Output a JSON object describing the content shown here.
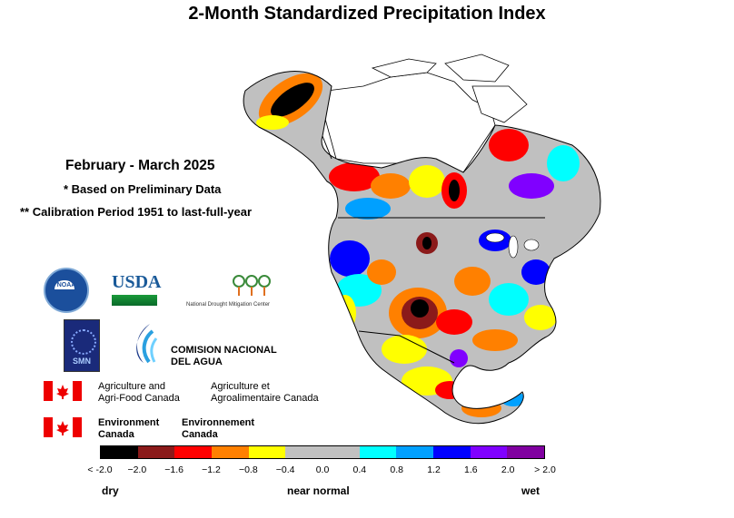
{
  "title": "2-Month Standardized Precipitation Index",
  "period": "February - March 2025",
  "note_preliminary": "* Based on Preliminary Data",
  "note_calibration": "** Calibration Period 1951 to last-full-year",
  "logos": {
    "usda": "USDA",
    "noaa": "NOAA",
    "ndmc": "National Drought Mitigation Center",
    "smn": "SMN",
    "conagua_line1": "COMISION NACIONAL",
    "conagua_line2": "DEL AGUA",
    "aafc_en_line1": "Agriculture and",
    "aafc_en_line2": "Agri-Food Canada",
    "aafc_fr_line1": "Agriculture et",
    "aafc_fr_line2": "Agroalimentaire Canada",
    "ec_en_line1": "Environment",
    "ec_en_line2": "Canada",
    "ec_fr_line1": "Environnement",
    "ec_fr_line2": "Canada"
  },
  "legend": {
    "colors": [
      "#000000",
      "#8b1a1a",
      "#ff0000",
      "#ff8000",
      "#ffff00",
      "#c0c0c0",
      "#c0c0c0",
      "#00ffff",
      "#00a0ff",
      "#0000ff",
      "#8000ff",
      "#8000a0"
    ],
    "ticks": [
      "< -2.0",
      "−2.0",
      "−1.6",
      "−1.2",
      "−0.8",
      "−0.4",
      "0.0",
      "0.4",
      "0.8",
      "1.2",
      "1.6",
      "2.0",
      "> 2.0"
    ],
    "label_dry": "dry",
    "label_normal": "near normal",
    "label_wet": "wet"
  }
}
